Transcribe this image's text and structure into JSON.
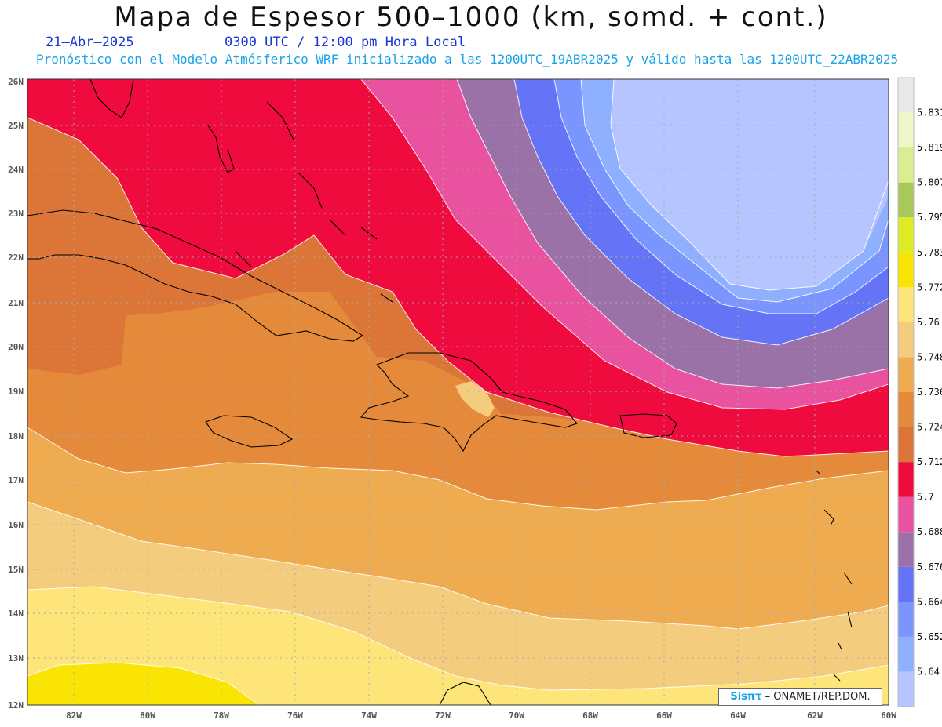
{
  "title": "Mapa de Espesor 500–1000 (km, somd. + cont.)",
  "date": "21–Abr–2025",
  "time": "0300 UTC / 12:00 pm Hora Local",
  "description": "Pronóstico con el Modelo Atmósferico WRF inicializado a las 1200UTC_19ABR2025 y válido hasta las  1200UTC_22ABR2025",
  "credit": {
    "brand": "Sisπτ",
    "text": "– ONAMET/REP.DOM."
  },
  "map": {
    "lon_range": [
      -83.2,
      -59.8
    ],
    "lat_range": [
      11.8,
      26.1
    ],
    "lat_ticks": [
      "12N",
      "13N",
      "14N",
      "15N",
      "16N",
      "17N",
      "18N",
      "19N",
      "20N",
      "21N",
      "22N",
      "23N",
      "24N",
      "25N",
      "26N"
    ],
    "lon_ticks": [
      "82W",
      "80W",
      "78W",
      "76W",
      "74W",
      "72W",
      "70W",
      "68W",
      "66W",
      "64W",
      "62W",
      "60W"
    ]
  },
  "colorbar": {
    "labels": [
      "5.64",
      "5.652",
      "5.664",
      "5.676",
      "5.688",
      "5.7",
      "5.712",
      "5.724",
      "5.736",
      "5.748",
      "5.76",
      "5.772",
      "5.783",
      "5.795",
      "5.807",
      "5.819",
      "5.831"
    ],
    "colors": [
      "#b6c5ff",
      "#8fb0ff",
      "#7b95ff",
      "#6574f6",
      "#9a72a8",
      "#e8529f",
      "#ef0b3e",
      "#dc7638",
      "#e58a3a",
      "#eeab4f",
      "#f3cd7d",
      "#fee57a",
      "#f9e404",
      "#dceb24",
      "#a6c95a",
      "#d8ee90",
      "#eef7c8",
      "#e9e9e9"
    ]
  }
}
